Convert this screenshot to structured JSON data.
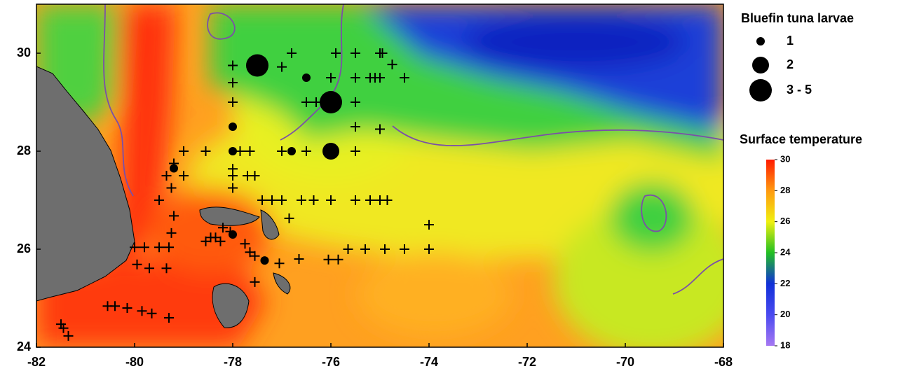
{
  "map": {
    "xlim": [
      -82,
      -68
    ],
    "ylim": [
      24,
      31
    ],
    "xticks": [
      -82,
      -80,
      -78,
      -76,
      -74,
      -72,
      -70,
      -68
    ],
    "yticks": [
      24,
      26,
      28,
      30
    ],
    "larvae": {
      "title": "Bluefin tuna larvae",
      "color": "#000000",
      "classes": [
        {
          "label": "1",
          "points": [
            [
              -76.5,
              29.5
            ],
            [
              -78,
              28.5
            ],
            [
              -78,
              28
            ],
            [
              -76.8,
              28
            ],
            [
              -79.2,
              27.65
            ],
            [
              -78,
              26.3
            ],
            [
              -77.35,
              25.77
            ]
          ]
        },
        {
          "label": "2",
          "points": [
            [
              -76,
              28
            ]
          ]
        },
        {
          "label": "3 - 5",
          "points": [
            [
              -77.5,
              29.75
            ],
            [
              -76,
              29
            ]
          ]
        }
      ]
    },
    "stations": [
      [
        -76.8,
        30
      ],
      [
        -75.9,
        30
      ],
      [
        -75.5,
        30
      ],
      [
        -75,
        30
      ],
      [
        -74.95,
        30
      ],
      [
        -78,
        29.75
      ],
      [
        -77,
        29.72
      ],
      [
        -74.75,
        29.77
      ],
      [
        -76,
        29.5
      ],
      [
        -75.5,
        29.5
      ],
      [
        -75.2,
        29.5
      ],
      [
        -75.1,
        29.5
      ],
      [
        -75,
        29.5
      ],
      [
        -74.5,
        29.5
      ],
      [
        -78,
        29.4
      ],
      [
        -78,
        29
      ],
      [
        -76.5,
        29
      ],
      [
        -76.3,
        29
      ],
      [
        -75.5,
        29
      ],
      [
        -75.5,
        28.5
      ],
      [
        -75,
        28.45
      ],
      [
        -79,
        28
      ],
      [
        -78.55,
        28
      ],
      [
        -77.85,
        28
      ],
      [
        -77.65,
        28
      ],
      [
        -77,
        28
      ],
      [
        -76.5,
        28
      ],
      [
        -75.5,
        28
      ],
      [
        -79.2,
        27.75
      ],
      [
        -78,
        27.64
      ],
      [
        -79.35,
        27.5
      ],
      [
        -79,
        27.5
      ],
      [
        -78,
        27.5
      ],
      [
        -77.7,
        27.5
      ],
      [
        -77.55,
        27.5
      ],
      [
        -79.25,
        27.25
      ],
      [
        -78,
        27.25
      ],
      [
        -79.5,
        27
      ],
      [
        -77.4,
        27
      ],
      [
        -77.2,
        27
      ],
      [
        -77,
        27
      ],
      [
        -76.6,
        27
      ],
      [
        -76.35,
        27
      ],
      [
        -76,
        27
      ],
      [
        -75.5,
        27
      ],
      [
        -75.2,
        27
      ],
      [
        -75,
        27
      ],
      [
        -74.85,
        27
      ],
      [
        -76.85,
        26.63
      ],
      [
        -79.2,
        26.68
      ],
      [
        -74,
        26.5
      ],
      [
        -79.25,
        26.33
      ],
      [
        -78.2,
        26.44
      ],
      [
        -78.05,
        26.36
      ],
      [
        -78.35,
        26.24
      ],
      [
        -78.45,
        26.24
      ],
      [
        -78.55,
        26.16
      ],
      [
        -78.25,
        26.16
      ],
      [
        -77.75,
        26.11
      ],
      [
        -80,
        26.04
      ],
      [
        -79.8,
        26.04
      ],
      [
        -79.5,
        26.04
      ],
      [
        -79.3,
        26.04
      ],
      [
        -75.65,
        26
      ],
      [
        -75.3,
        26
      ],
      [
        -74.9,
        26
      ],
      [
        -74.5,
        26
      ],
      [
        -74,
        26
      ],
      [
        -77.65,
        25.94
      ],
      [
        -77.55,
        25.86
      ],
      [
        -76.65,
        25.8
      ],
      [
        -76.05,
        25.79
      ],
      [
        -75.85,
        25.79
      ],
      [
        -77.05,
        25.71
      ],
      [
        -79.95,
        25.69
      ],
      [
        -79.7,
        25.61
      ],
      [
        -79.35,
        25.61
      ],
      [
        -77.55,
        25.33
      ],
      [
        -80.55,
        24.84
      ],
      [
        -80.4,
        24.84
      ],
      [
        -80.15,
        24.8
      ],
      [
        -79.85,
        24.74
      ],
      [
        -79.65,
        24.69
      ],
      [
        -79.3,
        24.6
      ],
      [
        -81.5,
        24.47
      ],
      [
        -81.45,
        24.39
      ],
      [
        -81.35,
        24.23
      ]
    ],
    "colorbar": {
      "title": "Surface temperature",
      "lim": [
        18,
        30
      ],
      "ticks": [
        18,
        20,
        22,
        24,
        26,
        28,
        30
      ],
      "colors": [
        "#a678f2",
        "#4a4af0",
        "#1030d8",
        "#22c022",
        "#f0f010",
        "#ff9a10",
        "#ff1a00"
      ]
    }
  }
}
